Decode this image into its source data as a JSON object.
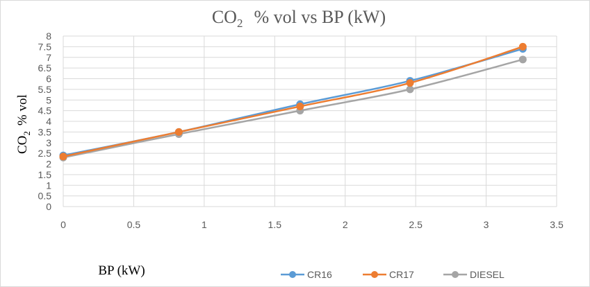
{
  "chart_data": {
    "type": "line",
    "title_main": "CO",
    "title_sub": "2",
    "title_rest": "% vol vs BP (kW)",
    "xlabel": "BP (kW)",
    "ylabel_main": "CO",
    "ylabel_sub": "2",
    "ylabel_rest": "% vol",
    "xlim": [
      0,
      3.5
    ],
    "ylim": [
      0,
      8
    ],
    "xticks": [
      "0",
      "0.5",
      "1",
      "1.5",
      "2",
      "2.5",
      "3",
      "3.5"
    ],
    "yticks": [
      "0",
      "0.5",
      "1",
      "1.5",
      "2",
      "2.5",
      "3",
      "3.5",
      "4",
      "4.5",
      "5",
      "5.5",
      "6",
      "6.5",
      "7",
      "7.5",
      "8"
    ],
    "grid": true,
    "legend_position": "bottom",
    "x": [
      0,
      0.82,
      1.68,
      2.46,
      3.26
    ],
    "series": [
      {
        "name": "CR16",
        "color": "#5B9BD5",
        "values": [
          2.4,
          3.5,
          4.8,
          5.9,
          7.4
        ]
      },
      {
        "name": "CR17",
        "color": "#ED7D31",
        "values": [
          2.35,
          3.5,
          4.7,
          5.8,
          7.5
        ]
      },
      {
        "name": "DIESEL",
        "color": "#A5A5A5",
        "values": [
          2.3,
          3.4,
          4.5,
          5.5,
          6.9
        ]
      }
    ]
  }
}
